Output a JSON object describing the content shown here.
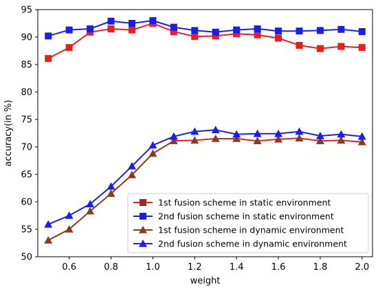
{
  "chart_data": {
    "type": "line",
    "title": "",
    "xlabel": "weight",
    "ylabel": "accuracy(in %)",
    "xlim": [
      0.45,
      2.05
    ],
    "ylim": [
      50,
      95
    ],
    "xticks": [
      0.6,
      0.8,
      1.0,
      1.2,
      1.4,
      1.6,
      1.8,
      2.0
    ],
    "xtick_labels": [
      "0.6",
      "0.8",
      "1.0",
      "1.2",
      "1.4",
      "1.6",
      "1.8",
      "2.0"
    ],
    "yticks": [
      50,
      55,
      60,
      65,
      70,
      75,
      80,
      85,
      90,
      95
    ],
    "ytick_labels": [
      "50",
      "55",
      "60",
      "65",
      "70",
      "75",
      "80",
      "85",
      "90",
      "95"
    ],
    "grid": false,
    "legend_position": "lower-right",
    "x": [
      0.5,
      0.6,
      0.7,
      0.8,
      0.9,
      1.0,
      1.1,
      1.2,
      1.3,
      1.4,
      1.5,
      1.6,
      1.7,
      1.8,
      1.9,
      2.0
    ],
    "series": [
      {
        "name": "1st fusion scheme in static environment",
        "marker": "square",
        "line_color": "#ee1c1c",
        "marker_color": "#ee1c1c",
        "legend_marker_color": "#a0281a",
        "values": [
          86.1,
          88.1,
          90.9,
          91.5,
          91.3,
          92.5,
          91.0,
          90.1,
          90.2,
          90.6,
          90.4,
          89.8,
          88.5,
          87.9,
          88.3,
          88.1
        ]
      },
      {
        "name": "2nd fusion scheme in static environment",
        "marker": "square",
        "line_color": "#1c1cee",
        "marker_color": "#1c1cee",
        "legend_marker_color": "#1c1cee",
        "values": [
          90.2,
          91.3,
          91.5,
          92.9,
          92.5,
          93.0,
          91.8,
          91.2,
          90.9,
          91.3,
          91.5,
          91.1,
          91.1,
          91.2,
          91.4,
          91.0
        ]
      },
      {
        "name": "1st fusion scheme in dynamic environment",
        "marker": "triangle",
        "line_color_segments": [
          "#8b3a1a",
          "#ee1c1c"
        ],
        "color_switch_index": 6,
        "marker_color": "#8b3a1a",
        "legend_marker_color": "#8b3a1a",
        "values": [
          53.0,
          55.0,
          58.3,
          61.5,
          64.9,
          68.8,
          71.1,
          71.2,
          71.5,
          71.5,
          71.1,
          71.4,
          71.6,
          71.1,
          71.2,
          70.9
        ]
      },
      {
        "name": "2nd fusion scheme in dynamic environment",
        "marker": "triangle",
        "line_color": "#1c1cee",
        "marker_color": "#1c1cee",
        "legend_marker_color": "#1c1cee",
        "values": [
          55.9,
          57.5,
          59.6,
          62.8,
          66.5,
          70.3,
          71.9,
          72.8,
          73.1,
          72.3,
          72.4,
          72.4,
          72.8,
          72.0,
          72.3,
          71.9
        ]
      }
    ]
  }
}
